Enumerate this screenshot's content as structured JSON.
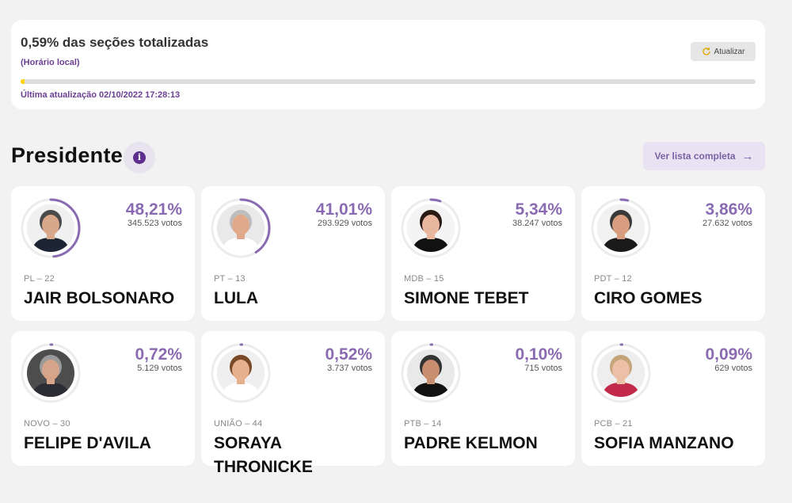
{
  "status": {
    "title": "0,59% das seções totalizadas",
    "subtitle": "(Horário local)",
    "refresh_label": "Atualizar",
    "progress_fraction": 0.0059,
    "progress_color": "#ffd400",
    "last_update": "Última atualização 02/10/2022 17:28:13"
  },
  "section": {
    "title": "Presidente",
    "info_icon": "i",
    "list_button": "Ver lista completa",
    "list_arrow": "→"
  },
  "accent_color": "#8a6bb1",
  "candidates": [
    {
      "party": "PL – 22",
      "name": "JAIR BOLSONARO",
      "pct": "48,21%",
      "share": 0.4821,
      "votes": "345.523 votos",
      "skin": "#d9a88a",
      "hair": "#4a4a4a",
      "bg": "#f0f0f0",
      "shirt": "#1c2533"
    },
    {
      "party": "PT – 13",
      "name": "LULA",
      "pct": "41,01%",
      "share": 0.4101,
      "votes": "293.929 votos",
      "skin": "#e0a98c",
      "hair": "#bdbdbd",
      "bg": "#e9e9e9",
      "shirt": "#ffffff"
    },
    {
      "party": "MDB – 15",
      "name": "SIMONE TEBET",
      "pct": "5,34%",
      "share": 0.0534,
      "votes": "38.247 votos",
      "skin": "#e8b79e",
      "hair": "#2a1a14",
      "bg": "#f4f4f4",
      "shirt": "#111111"
    },
    {
      "party": "PDT – 12",
      "name": "CIRO GOMES",
      "pct": "3,86%",
      "share": 0.0386,
      "votes": "27.632 votos",
      "skin": "#d99d80",
      "hair": "#3a3a3a",
      "bg": "#f1f1f1",
      "shirt": "#1a1a1a"
    },
    {
      "party": "NOVO – 30",
      "name": "FELIPE D'AVILA",
      "pct": "0,72%",
      "share": 0.0072,
      "votes": "5.129 votos",
      "skin": "#d6a48a",
      "hair": "#9a9a9a",
      "bg": "#4d4d4d",
      "shirt": "#2c2c34"
    },
    {
      "party": "UNIÃO – 44",
      "name": "SORAYA THRONICKE",
      "pct": "0,52%",
      "share": 0.0052,
      "votes": "3.737 votos",
      "skin": "#e6b08f",
      "hair": "#7a4a26",
      "bg": "#efefef",
      "shirt": "#ffffff"
    },
    {
      "party": "PTB – 14",
      "name": "PADRE KELMON",
      "pct": "0,10%",
      "share": 0.001,
      "votes": "715 votos",
      "skin": "#c98e6f",
      "hair": "#333333",
      "bg": "#e9e9e9",
      "shirt": "#111111"
    },
    {
      "party": "PCB – 21",
      "name": "SOFIA MANZANO",
      "pct": "0,09%",
      "share": 0.0009,
      "votes": "629 votos",
      "skin": "#ecc0a6",
      "hair": "#c4a57a",
      "bg": "#eeeeee",
      "shirt": "#c2294b"
    }
  ]
}
